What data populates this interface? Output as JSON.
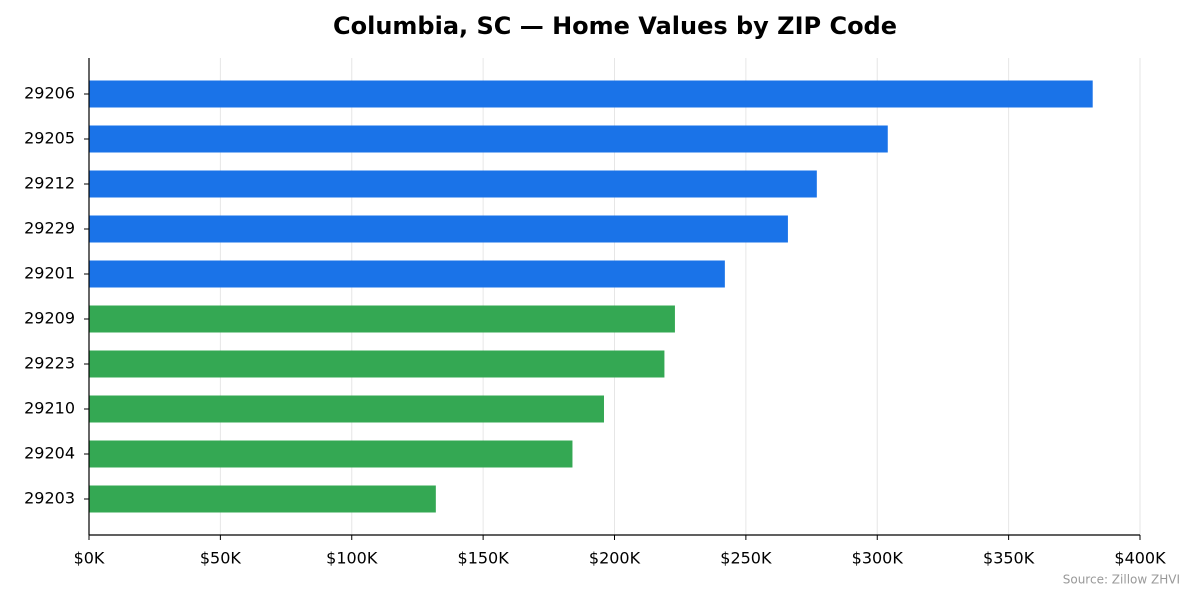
{
  "chart_data": {
    "type": "barh",
    "title": "Columbia, SC — Home Values by ZIP Code",
    "categories": [
      "29206",
      "29205",
      "29212",
      "29229",
      "29201",
      "29209",
      "29223",
      "29210",
      "29204",
      "29203"
    ],
    "values": [
      382000,
      304000,
      277000,
      266000,
      242000,
      223000,
      219000,
      196000,
      184000,
      132000
    ],
    "colors": [
      "#1a73e8",
      "#1a73e8",
      "#1a73e8",
      "#1a73e8",
      "#1a73e8",
      "#34a853",
      "#34a853",
      "#34a853",
      "#34a853",
      "#34a853"
    ],
    "xlim": [
      0,
      400000
    ],
    "xticks": [
      {
        "value": 0,
        "label": "$0K"
      },
      {
        "value": 50000,
        "label": "$50K"
      },
      {
        "value": 100000,
        "label": "$100K"
      },
      {
        "value": 150000,
        "label": "$150K"
      },
      {
        "value": 200000,
        "label": "$200K"
      },
      {
        "value": 250000,
        "label": "$250K"
      },
      {
        "value": 300000,
        "label": "$300K"
      },
      {
        "value": 350000,
        "label": "$350K"
      },
      {
        "value": 400000,
        "label": "$400K"
      }
    ],
    "grid": true,
    "source": "Source: Zillow ZHVI"
  }
}
